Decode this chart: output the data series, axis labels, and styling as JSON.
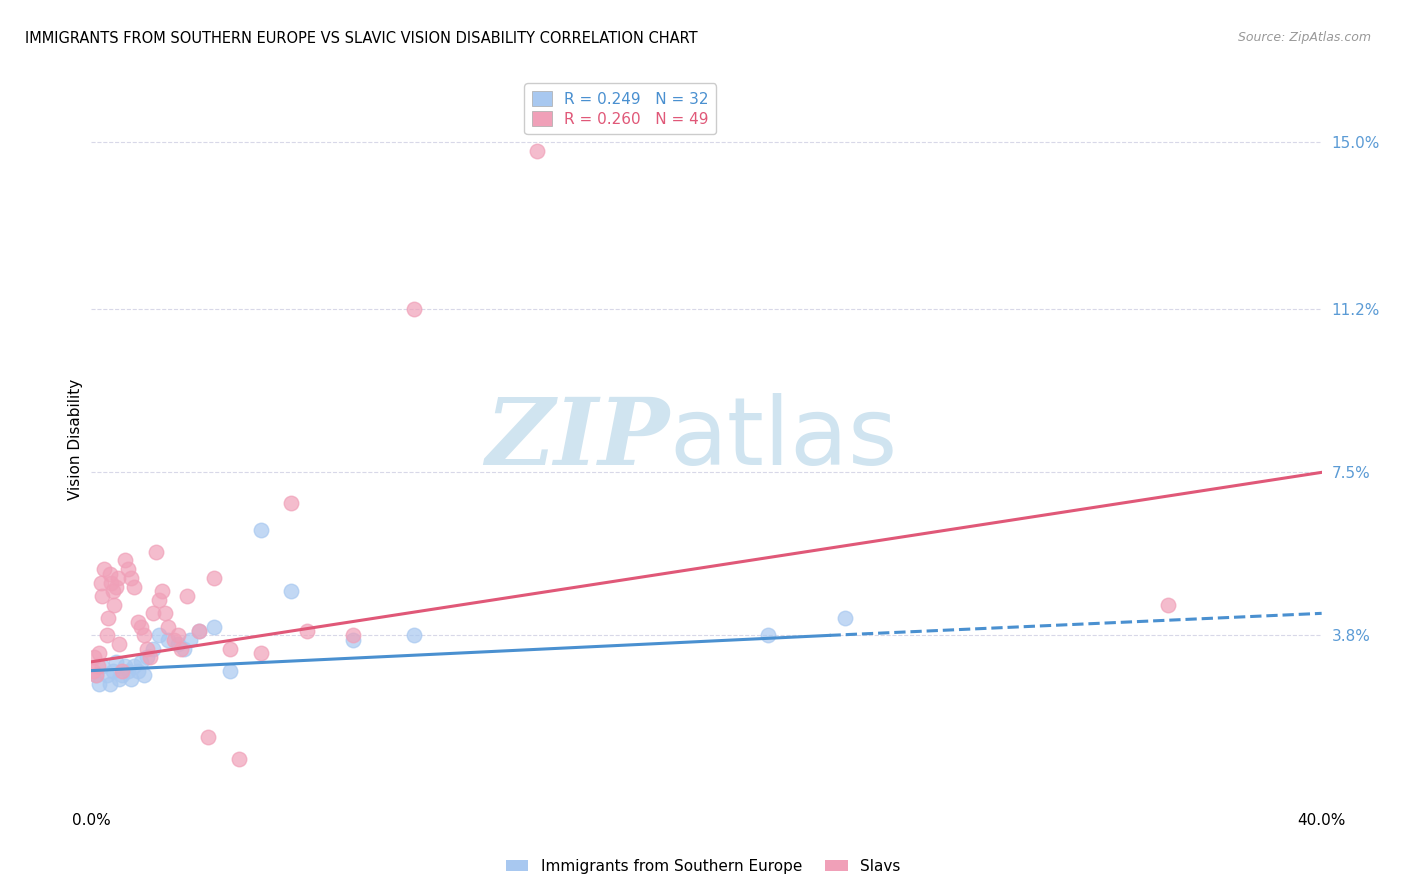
{
  "title": "IMMIGRANTS FROM SOUTHERN EUROPE VS SLAVIC VISION DISABILITY CORRELATION CHART",
  "source": "Source: ZipAtlas.com",
  "ylabel": "Vision Disability",
  "legend_label1": "Immigrants from Southern Europe",
  "legend_label2": "Slavs",
  "legend_R1": "0.249",
  "legend_N1": "32",
  "legend_R2": "0.260",
  "legend_N2": "49",
  "blue_color": "#a8c8f0",
  "pink_color": "#f0a0b8",
  "trend_blue_color": "#4a90d0",
  "trend_pink_color": "#e05878",
  "watermark_color": "#d0e4f0",
  "right_ytick_color": "#5b9bd5",
  "right_yticks": [
    3.8,
    7.5,
    11.2,
    15.0
  ],
  "right_ytick_labels": [
    "3.8%",
    "7.5%",
    "11.2%",
    "15.0%"
  ],
  "xlim": [
    0,
    40
  ],
  "ylim": [
    0,
    16.5
  ],
  "blue_x": [
    0.15,
    0.25,
    0.35,
    0.5,
    0.6,
    0.7,
    0.8,
    0.9,
    1.0,
    1.1,
    1.2,
    1.3,
    1.4,
    1.5,
    1.6,
    1.7,
    1.8,
    2.0,
    2.2,
    2.5,
    2.8,
    3.0,
    3.2,
    3.5,
    4.0,
    4.5,
    5.5,
    6.5,
    8.5,
    10.5,
    22.0,
    24.5
  ],
  "blue_y": [
    2.9,
    2.7,
    3.1,
    2.9,
    2.7,
    3.0,
    3.2,
    2.8,
    2.9,
    3.1,
    3.0,
    2.8,
    3.1,
    3.0,
    3.2,
    2.9,
    3.3,
    3.5,
    3.8,
    3.7,
    3.6,
    3.5,
    3.7,
    3.9,
    4.0,
    3.0,
    6.2,
    4.8,
    3.7,
    3.8,
    3.8,
    4.2
  ],
  "pink_x": [
    0.05,
    0.1,
    0.15,
    0.2,
    0.25,
    0.3,
    0.35,
    0.4,
    0.5,
    0.55,
    0.6,
    0.65,
    0.7,
    0.75,
    0.8,
    0.85,
    0.9,
    1.0,
    1.1,
    1.2,
    1.3,
    1.4,
    1.5,
    1.6,
    1.7,
    1.8,
    1.9,
    2.0,
    2.1,
    2.2,
    2.3,
    2.4,
    2.5,
    2.7,
    2.9,
    3.1,
    3.5,
    4.0,
    4.5,
    5.5,
    6.5,
    7.0,
    8.5,
    10.5,
    14.5,
    2.8,
    3.8,
    4.8,
    35.0
  ],
  "pink_y": [
    3.0,
    3.3,
    2.9,
    3.1,
    3.4,
    5.0,
    4.7,
    5.3,
    3.8,
    4.2,
    5.2,
    5.0,
    4.8,
    4.5,
    4.9,
    5.1,
    3.6,
    3.0,
    5.5,
    5.3,
    5.1,
    4.9,
    4.1,
    4.0,
    3.8,
    3.5,
    3.3,
    4.3,
    5.7,
    4.6,
    4.8,
    4.3,
    4.0,
    3.7,
    3.5,
    4.7,
    3.9,
    5.1,
    3.5,
    3.4,
    6.8,
    3.9,
    3.8,
    11.2,
    14.8,
    3.8,
    1.5,
    1.0,
    4.5
  ],
  "background_color": "#ffffff",
  "grid_color": "#d8d8e8"
}
